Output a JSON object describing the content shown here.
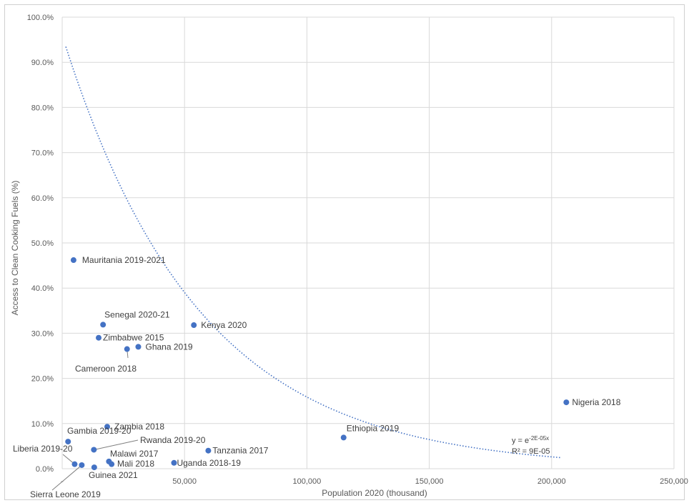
{
  "chart_data": {
    "type": "scatter",
    "xlabel": "Population 2020 (thousand)",
    "ylabel": "Access to Clean Cooking Fuels (%)",
    "xlim": [
      0,
      250000
    ],
    "ylim": [
      0,
      100
    ],
    "x_ticks": [
      0,
      50000,
      100000,
      150000,
      200000,
      250000
    ],
    "x_tick_labels": [
      "-",
      "50,000",
      "100,000",
      "150,000",
      "200,000",
      "250,000"
    ],
    "y_ticks": [
      0,
      10,
      20,
      30,
      40,
      50,
      60,
      70,
      80,
      90,
      100
    ],
    "y_tick_labels": [
      "0.0%",
      "10.0%",
      "20.0%",
      "30.0%",
      "40.0%",
      "50.0%",
      "60.0%",
      "70.0%",
      "80.0%",
      "90.0%",
      "100.0%"
    ],
    "grid": true,
    "point_color": "#4472c4",
    "trendline_color": "#4472c4",
    "points": [
      {
        "label": "Mauritania 2019-2021",
        "x": 4650,
        "y": 46.2
      },
      {
        "label": "Senegal 2020-21",
        "x": 16700,
        "y": 31.9
      },
      {
        "label": "Kenya 2020",
        "x": 53800,
        "y": 31.8
      },
      {
        "label": "Zimbabwe 2015",
        "x": 14900,
        "y": 29.0
      },
      {
        "label": "Ghana 2019",
        "x": 31100,
        "y": 27.0
      },
      {
        "label": "Cameroon 2018",
        "x": 26500,
        "y": 26.5
      },
      {
        "label": "Nigeria 2018",
        "x": 206000,
        "y": 14.7
      },
      {
        "label": "Zambia 2018",
        "x": 18400,
        "y": 9.3
      },
      {
        "label": "Ethiopia 2019",
        "x": 115000,
        "y": 6.9
      },
      {
        "label": "Gambia 2019-20",
        "x": 2400,
        "y": 6.0
      },
      {
        "label": "Rwanda 2019-20",
        "x": 12950,
        "y": 4.2
      },
      {
        "label": "Tanzania 2017",
        "x": 59700,
        "y": 4.0
      },
      {
        "label": "Malawi 2017",
        "x": 19100,
        "y": 1.6
      },
      {
        "label": "Mali 2018",
        "x": 20200,
        "y": 1.0
      },
      {
        "label": "Uganda 2018-19",
        "x": 45700,
        "y": 1.3
      },
      {
        "label": "Liberia 2019-20",
        "x": 5100,
        "y": 1.0
      },
      {
        "label": "Sierra Leone 2019",
        "x": 8000,
        "y": 0.8
      },
      {
        "label": "Guinea 2021",
        "x": 13100,
        "y": 0.3
      }
    ],
    "trendline": {
      "type": "exponential",
      "equation_base": "y = e",
      "equation_exponent": "-2E-05x",
      "r_squared": "R² = 9E-05"
    }
  }
}
